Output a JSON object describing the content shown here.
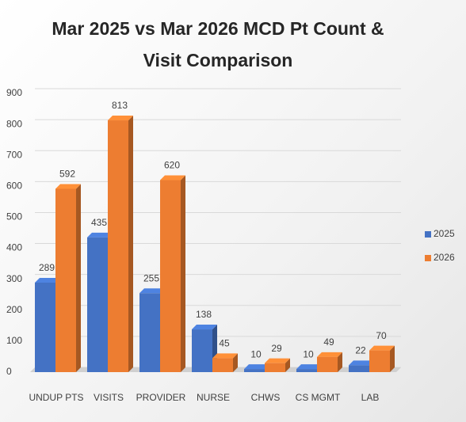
{
  "chart_data": {
    "type": "bar3d",
    "title": "Mar 2025 vs Mar 2026 MCD Pt Count & Visit Comparison",
    "categories": [
      "UNDUP PTS",
      "VISITS",
      "PROVIDER",
      "NURSE",
      "CHWS",
      "CS MGMT",
      "LAB"
    ],
    "series": [
      {
        "name": "2025",
        "color": "#4472c4",
        "values": [
          289,
          435,
          255,
          138,
          10,
          10,
          22
        ]
      },
      {
        "name": "2026",
        "color": "#ed7d31",
        "values": [
          592,
          813,
          620,
          45,
          29,
          49,
          70
        ]
      }
    ],
    "ylim": [
      0,
      900
    ],
    "yticks": [
      0,
      100,
      200,
      300,
      400,
      500,
      600,
      700,
      800,
      900
    ],
    "grid": true,
    "legend": "right"
  }
}
